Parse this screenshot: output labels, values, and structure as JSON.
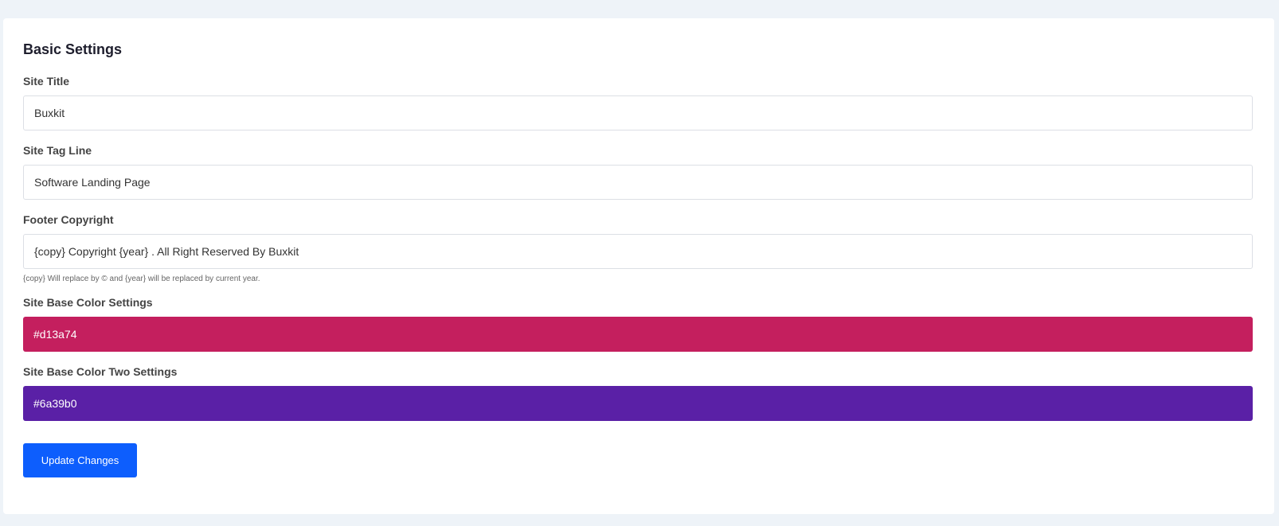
{
  "card": {
    "title": "Basic Settings"
  },
  "fields": {
    "site_title": {
      "label": "Site Title",
      "value": "Buxkit"
    },
    "site_tag_line": {
      "label": "Site Tag Line",
      "value": "Software Landing Page"
    },
    "footer_copyright": {
      "label": "Footer Copyright",
      "value": "{copy} Copyright {year} . All Right Reserved By Buxkit",
      "help": "{copy} Will replace by © and {year} will be replaced by current year."
    },
    "base_color": {
      "label": "Site Base Color Settings",
      "value": "#d13a74",
      "display_color": "#c41f5e"
    },
    "base_color_two": {
      "label": "Site Base Color Two Settings",
      "value": "#6a39b0",
      "display_color": "#5a20a6"
    }
  },
  "submit": {
    "label": "Update Changes",
    "color": "#0d5efd"
  }
}
